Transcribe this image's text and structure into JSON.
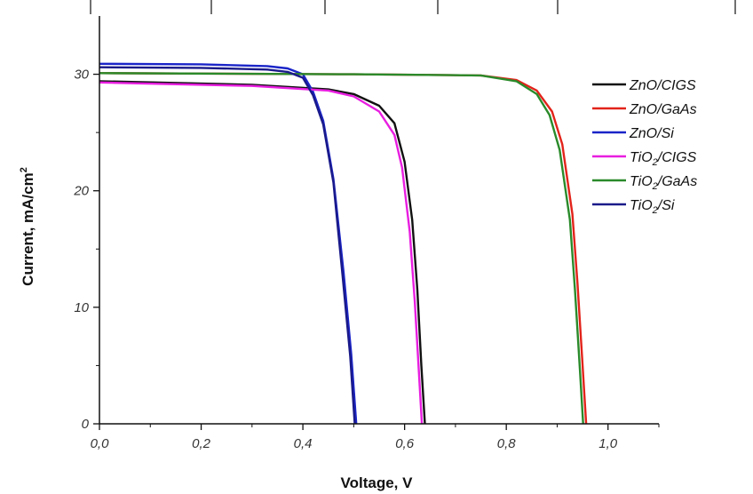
{
  "chart_data": {
    "type": "line",
    "xlabel": "Voltage, V",
    "ylabel": "Current, mA/cm",
    "ylabel_sup": "2",
    "xlim": [
      0.0,
      1.1
    ],
    "ylim": [
      0,
      35
    ],
    "x_ticks": [
      0.0,
      0.2,
      0.4,
      0.6,
      0.8,
      1.0
    ],
    "x_tick_labels": [
      "0,0",
      "0,2",
      "0,4",
      "0,6",
      "0,8",
      "1,0"
    ],
    "y_ticks": [
      0,
      10,
      20,
      30
    ],
    "y_tick_labels": [
      "0",
      "10",
      "20",
      "30"
    ],
    "grid": false,
    "legend_position": "top-right",
    "series": [
      {
        "name": "ZnO/CIGS",
        "name_main": "ZnO/CIGS",
        "name_sub": "",
        "name_rest": "",
        "color": "#111111",
        "x": [
          0.0,
          0.3,
          0.45,
          0.5,
          0.55,
          0.58,
          0.6,
          0.615,
          0.625,
          0.633,
          0.64
        ],
        "y": [
          29.4,
          29.1,
          28.7,
          28.3,
          27.3,
          25.8,
          22.5,
          17.5,
          11.5,
          5.0,
          0.0
        ]
      },
      {
        "name": "ZnO/GaAs",
        "name_main": "ZnO/GaAs",
        "name_sub": "",
        "name_rest": "",
        "color": "#e2231a",
        "x": [
          0.0,
          0.5,
          0.75,
          0.82,
          0.86,
          0.89,
          0.91,
          0.93,
          0.94,
          0.95,
          0.957
        ],
        "y": [
          30.1,
          30.0,
          29.9,
          29.5,
          28.6,
          26.8,
          24.0,
          18.0,
          12.0,
          5.0,
          0.0
        ]
      },
      {
        "name": "ZnO/Si",
        "name_main": "ZnO/Si",
        "name_sub": "",
        "name_rest": "",
        "color": "#1a24c8",
        "x": [
          0.0,
          0.2,
          0.33,
          0.37,
          0.4,
          0.42,
          0.44,
          0.46,
          0.48,
          0.495,
          0.505
        ],
        "y": [
          30.9,
          30.85,
          30.7,
          30.5,
          30.0,
          28.5,
          26.0,
          21.0,
          13.0,
          6.0,
          0.0
        ]
      },
      {
        "name": "TiO2/CIGS",
        "name_main": "TiO",
        "name_sub": "2",
        "name_rest": "/CIGS",
        "color": "#e81ee0",
        "x": [
          0.0,
          0.3,
          0.45,
          0.5,
          0.55,
          0.58,
          0.595,
          0.61,
          0.62,
          0.628,
          0.634
        ],
        "y": [
          29.3,
          29.0,
          28.6,
          28.1,
          26.8,
          24.8,
          22.0,
          16.5,
          10.5,
          4.5,
          0.0
        ]
      },
      {
        "name": "TiO2/GaAs",
        "name_main": "TiO",
        "name_sub": "2",
        "name_rest": "/GaAs",
        "color": "#2a8a2a",
        "x": [
          0.0,
          0.5,
          0.75,
          0.82,
          0.86,
          0.885,
          0.905,
          0.925,
          0.935,
          0.945,
          0.951
        ],
        "y": [
          30.1,
          30.0,
          29.9,
          29.4,
          28.3,
          26.5,
          23.5,
          17.5,
          11.5,
          4.5,
          0.0
        ]
      },
      {
        "name": "TiO2/Si",
        "name_main": "TiO",
        "name_sub": "2",
        "name_rest": "/Si",
        "color": "#1a1a8a",
        "x": [
          0.0,
          0.2,
          0.33,
          0.37,
          0.4,
          0.42,
          0.44,
          0.46,
          0.478,
          0.493,
          0.502
        ],
        "y": [
          30.6,
          30.55,
          30.4,
          30.2,
          29.7,
          28.2,
          25.7,
          20.7,
          12.7,
          5.8,
          0.0
        ]
      }
    ]
  }
}
